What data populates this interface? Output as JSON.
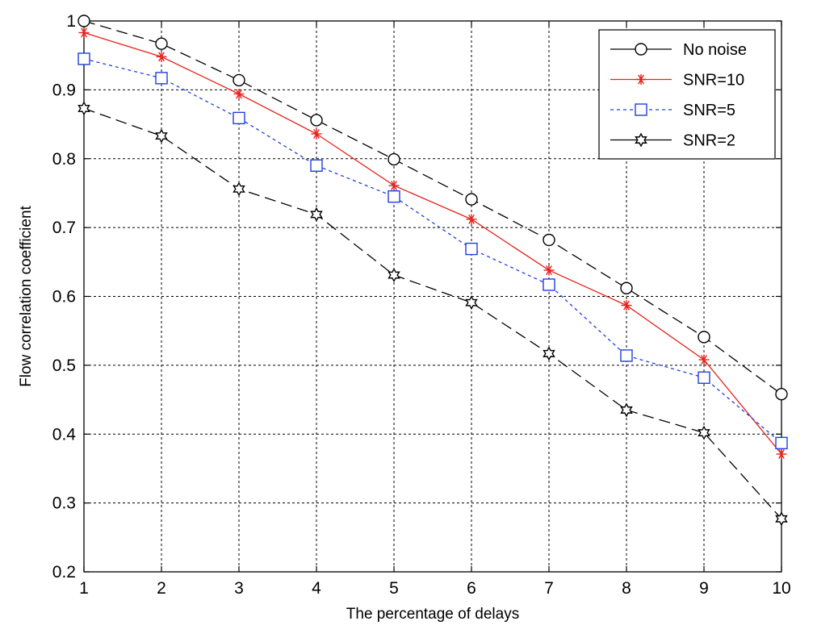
{
  "chart_data": {
    "type": "line",
    "title": "",
    "xlabel": "The percentage of delays",
    "ylabel": "Flow correlation coefficient",
    "xlim": [
      1,
      10
    ],
    "ylim": [
      0.2,
      1
    ],
    "xticks": [
      "1",
      "2",
      "3",
      "4",
      "5",
      "6",
      "7",
      "8",
      "9",
      "10"
    ],
    "yticks": [
      "0.2",
      "0.3",
      "0.4",
      "0.5",
      "0.6",
      "0.7",
      "0.8",
      "0.9",
      "1"
    ],
    "grid": true,
    "legend_position": "top-right",
    "x": [
      1,
      2,
      3,
      4,
      5,
      6,
      7,
      8,
      9,
      10
    ],
    "series": [
      {
        "name": "No noise",
        "values": [
          1.0,
          0.967,
          0.914,
          0.856,
          0.799,
          0.741,
          0.682,
          0.612,
          0.541,
          0.458
        ],
        "color": "#000000",
        "line_style": "long-dash",
        "marker": "circle"
      },
      {
        "name": "SNR=10",
        "values": [
          0.983,
          0.948,
          0.894,
          0.836,
          0.761,
          0.712,
          0.638,
          0.587,
          0.508,
          0.371
        ],
        "color": "#e8201a",
        "line_style": "solid",
        "marker": "asterisk"
      },
      {
        "name": "SNR=5",
        "values": [
          0.945,
          0.917,
          0.859,
          0.79,
          0.745,
          0.669,
          0.617,
          0.514,
          0.482,
          0.387
        ],
        "color": "#1f3fe0",
        "line_style": "dotted",
        "marker": "square"
      },
      {
        "name": "SNR=2",
        "values": [
          0.873,
          0.833,
          0.756,
          0.719,
          0.631,
          0.591,
          0.517,
          0.435,
          0.402,
          0.277
        ],
        "color": "#000000",
        "line_style": "long-dash",
        "marker": "hexagram"
      }
    ]
  }
}
